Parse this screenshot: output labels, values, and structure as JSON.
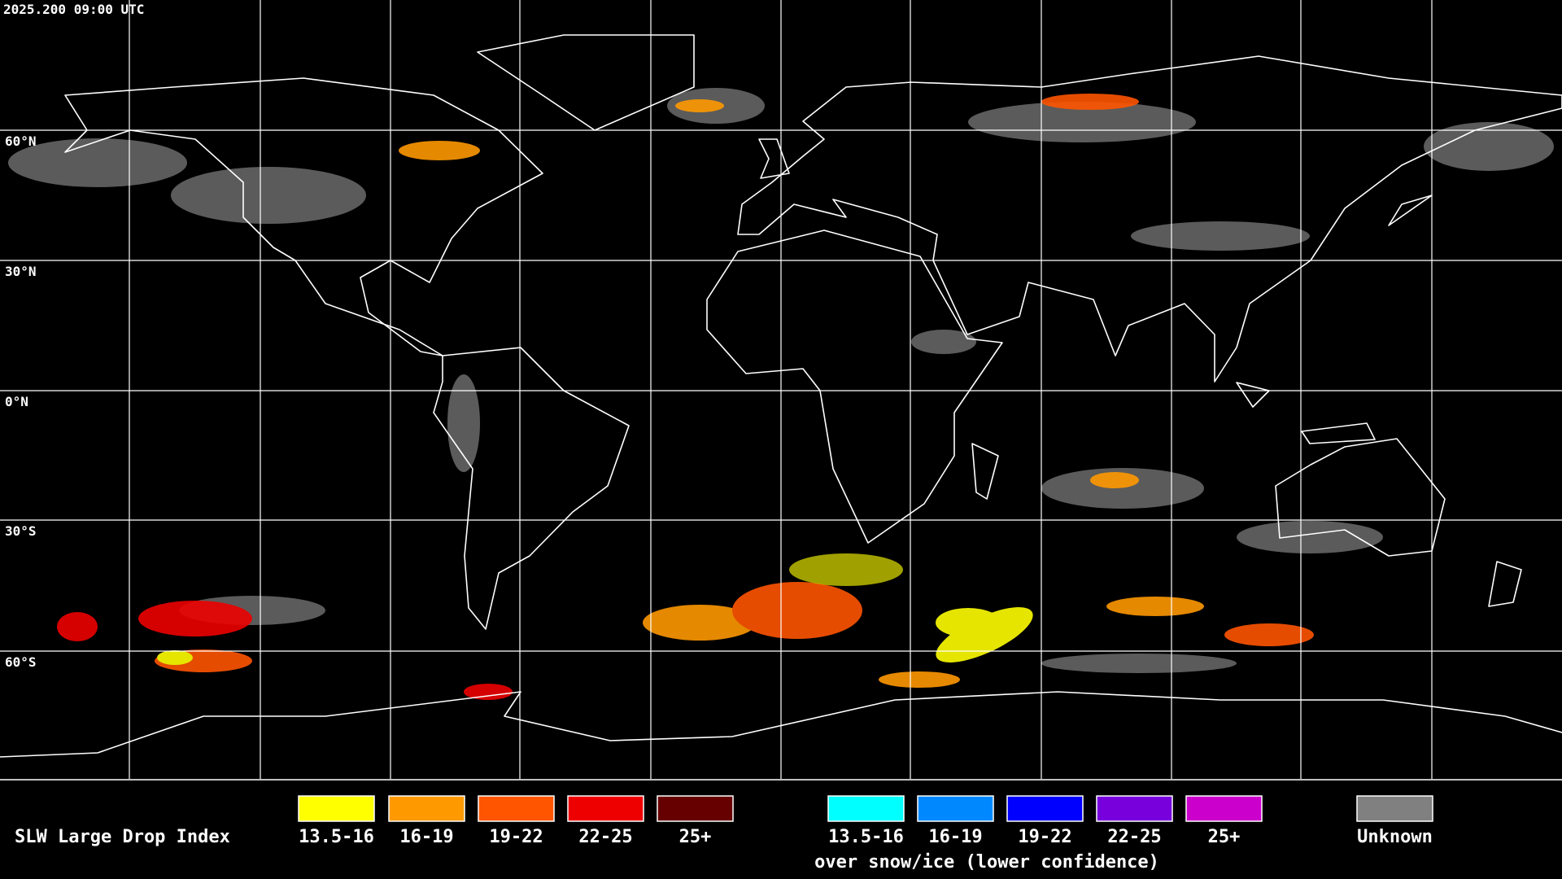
{
  "header": {
    "timestamp": "2025.200 09:00 UTC"
  },
  "map": {
    "latitude_labels": [
      "60°N",
      "30°N",
      "0°N",
      "30°S",
      "60°S"
    ]
  },
  "legend": {
    "title": "SLW Large Drop Index",
    "items": [
      {
        "label": "13.5-16",
        "color": "#ffff00"
      },
      {
        "label": "16-19",
        "color": "#ff9900"
      },
      {
        "label": "19-22",
        "color": "#ff5500"
      },
      {
        "label": "22-25",
        "color": "#ee0000"
      },
      {
        "label": "25+",
        "color": "#660000"
      }
    ],
    "snow_ice_items": [
      {
        "label": "13.5-16",
        "color": "#00ffff"
      },
      {
        "label": "16-19",
        "color": "#0088ff"
      },
      {
        "label": "19-22",
        "color": "#0000ff"
      },
      {
        "label": "22-25",
        "color": "#7700dd"
      },
      {
        "label": "25+",
        "color": "#cc00cc"
      }
    ],
    "snow_ice_caption": "over snow/ice (lower confidence)",
    "unknown": {
      "label": "Unknown",
      "color": "#808080"
    }
  }
}
